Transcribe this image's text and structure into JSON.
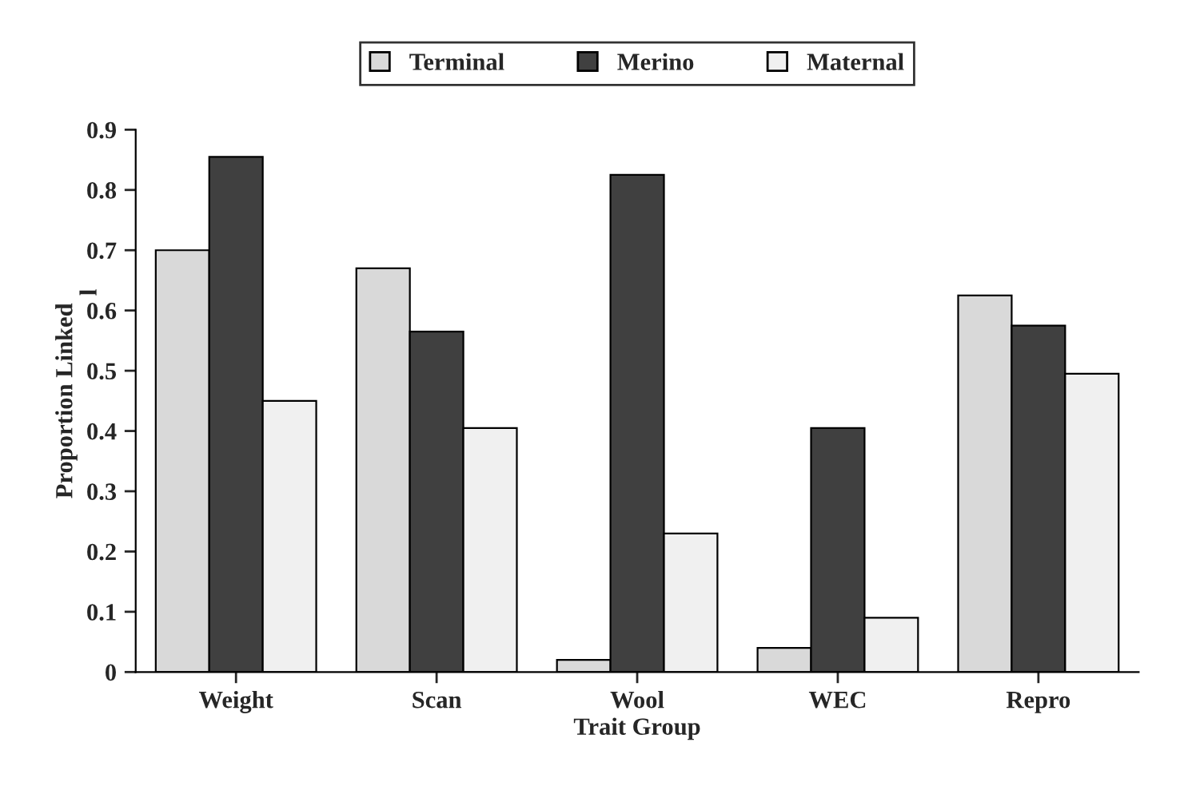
{
  "chart_data": {
    "type": "bar",
    "xlabel": "Trait Group",
    "ylabel": "Proportion Linked",
    "annotations": [
      "l"
    ],
    "categories": [
      "Weight",
      "Scan",
      "Wool",
      "WEC",
      "Repro"
    ],
    "series": [
      {
        "name": "Terminal",
        "color": "#d9d9d9",
        "values": [
          0.7,
          0.67,
          0.02,
          0.04,
          0.625
        ]
      },
      {
        "name": "Merino",
        "color": "#404040",
        "values": [
          0.855,
          0.565,
          0.825,
          0.405,
          0.575
        ]
      },
      {
        "name": "Maternal",
        "color": "#f0f0f0",
        "values": [
          0.45,
          0.405,
          0.23,
          0.09,
          0.495
        ]
      }
    ],
    "ylim": [
      0,
      0.9
    ],
    "yticks": [
      0,
      0.1,
      0.2,
      0.3,
      0.4,
      0.5,
      0.6,
      0.7,
      0.8,
      0.9
    ],
    "grid": false,
    "legend": "top"
  }
}
